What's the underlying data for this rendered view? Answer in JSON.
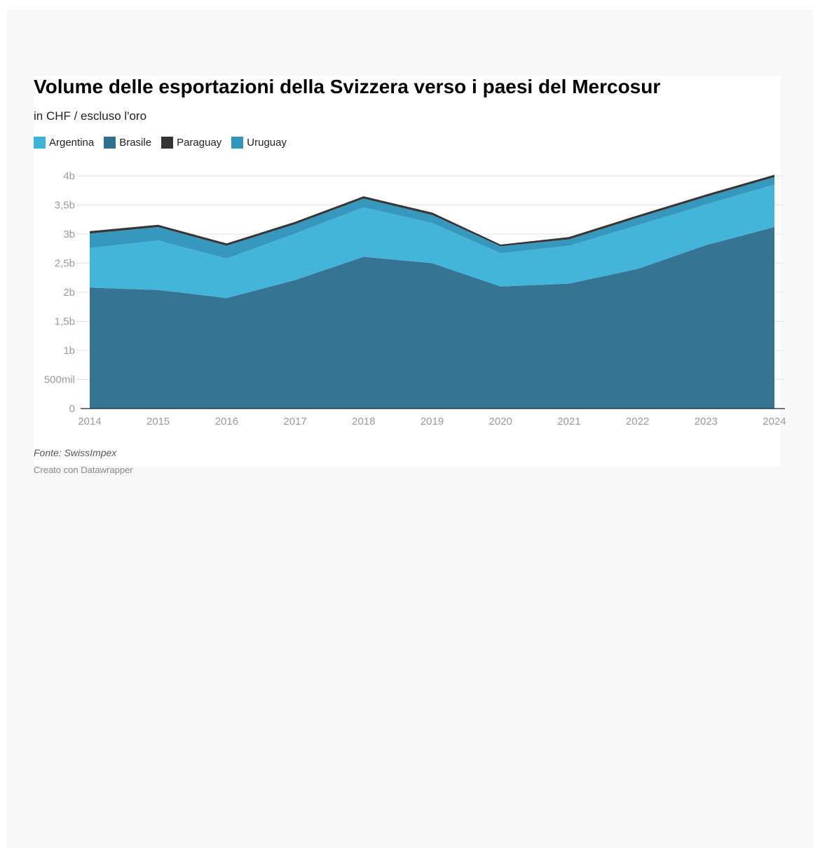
{
  "chart_data": {
    "type": "area",
    "stacked": true,
    "title": "Volume delle esportazioni della Svizzera verso i paesi del Mercosur",
    "subtitle": "in CHF / escluso l'oro",
    "xlabel": "",
    "ylabel": "",
    "ylim": [
      0,
      4000000000
    ],
    "grid": true,
    "legend_position": "top-left",
    "x": [
      "2014",
      "2015",
      "2016",
      "2017",
      "2018",
      "2019",
      "2020",
      "2021",
      "2022",
      "2023",
      "2024"
    ],
    "y_ticks": [
      {
        "value": 0,
        "label": "0"
      },
      {
        "value": 500000000,
        "label": "500mil"
      },
      {
        "value": 1000000000,
        "label": "1b"
      },
      {
        "value": 1500000000,
        "label": "1,5b"
      },
      {
        "value": 2000000000,
        "label": "2b"
      },
      {
        "value": 2500000000,
        "label": "2,5b"
      },
      {
        "value": 3000000000,
        "label": "3b"
      },
      {
        "value": 3500000000,
        "label": "3,5b"
      },
      {
        "value": 4000000000,
        "label": "4b"
      }
    ],
    "series": [
      {
        "name": "Brasile",
        "color": "#2f6f8f",
        "values": [
          2080000000,
          2040000000,
          1900000000,
          2210000000,
          2610000000,
          2500000000,
          2100000000,
          2150000000,
          2400000000,
          2810000000,
          3120000000
        ]
      },
      {
        "name": "Argentina",
        "color": "#3eb3d9",
        "values": [
          680000000,
          850000000,
          680000000,
          800000000,
          850000000,
          690000000,
          570000000,
          650000000,
          750000000,
          700000000,
          730000000
        ]
      },
      {
        "name": "Uruguay",
        "color": "#2f95bb",
        "values": [
          250000000,
          230000000,
          220000000,
          160000000,
          150000000,
          140000000,
          120000000,
          110000000,
          130000000,
          130000000,
          130000000
        ]
      },
      {
        "name": "Paraguay",
        "color": "#333333",
        "values": [
          30000000,
          30000000,
          30000000,
          30000000,
          30000000,
          30000000,
          20000000,
          30000000,
          30000000,
          30000000,
          30000000
        ]
      }
    ],
    "legend": [
      {
        "name": "Argentina",
        "color": "#3eb3d9"
      },
      {
        "name": "Brasile",
        "color": "#2f6f8f"
      },
      {
        "name": "Paraguay",
        "color": "#333333"
      },
      {
        "name": "Uruguay",
        "color": "#2f95bb"
      }
    ],
    "source": "Fonte: SwissImpex",
    "credit": "Creato con Datawrapper"
  }
}
